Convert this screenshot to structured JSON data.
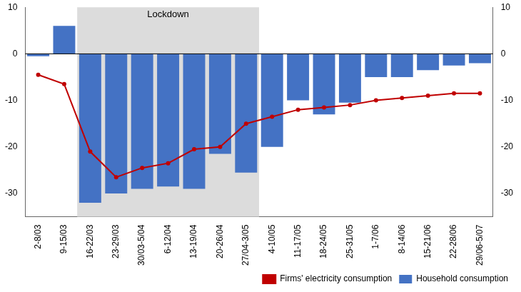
{
  "chart_data": {
    "type": "bar",
    "categories": [
      "2-8/03",
      "9-15/03",
      "16-22/03",
      "23-29/03",
      "30/03-5/04",
      "6-12/04",
      "13-19/04",
      "20-26/04",
      "27/04-3/05",
      "4-10/05",
      "11-17/05",
      "18-24/05",
      "25-31/05",
      "1-7/06",
      "8-14/06",
      "15-21/06",
      "22-28/06",
      "29/06-5/07"
    ],
    "series": [
      {
        "name": "Household consumption",
        "type": "bar",
        "color": "#4472c4",
        "values": [
          -0.5,
          6.0,
          -32.0,
          -30.0,
          -29.0,
          -28.5,
          -29.0,
          -21.5,
          -25.5,
          -20.0,
          -10.0,
          -13.0,
          -10.5,
          -5.0,
          -5.0,
          -3.5,
          -2.5,
          -2.0
        ]
      },
      {
        "name": "Firms' electricity consumption",
        "type": "line",
        "color": "#c00000",
        "marker": "o",
        "values": [
          -4.5,
          -6.5,
          -21.0,
          -26.5,
          -24.5,
          -23.5,
          -20.5,
          -20.0,
          -15.0,
          -13.5,
          -12.0,
          -11.5,
          -11.0,
          -10.0,
          -9.5,
          -9.0,
          -8.5,
          -8.5
        ]
      }
    ],
    "ylim": [
      -35,
      10
    ],
    "yticks": [
      -30,
      -20,
      -10,
      0,
      10
    ],
    "y2lim": [
      -35,
      10
    ],
    "y2ticks": [
      -30,
      -20,
      -10,
      0,
      10
    ],
    "grid": false,
    "legend": "lower right",
    "annotations": [
      {
        "text": "Lockdown",
        "x_start": "16-22/03",
        "x_end": "27/04-3/05",
        "color": "#dcdcdc"
      }
    ]
  }
}
